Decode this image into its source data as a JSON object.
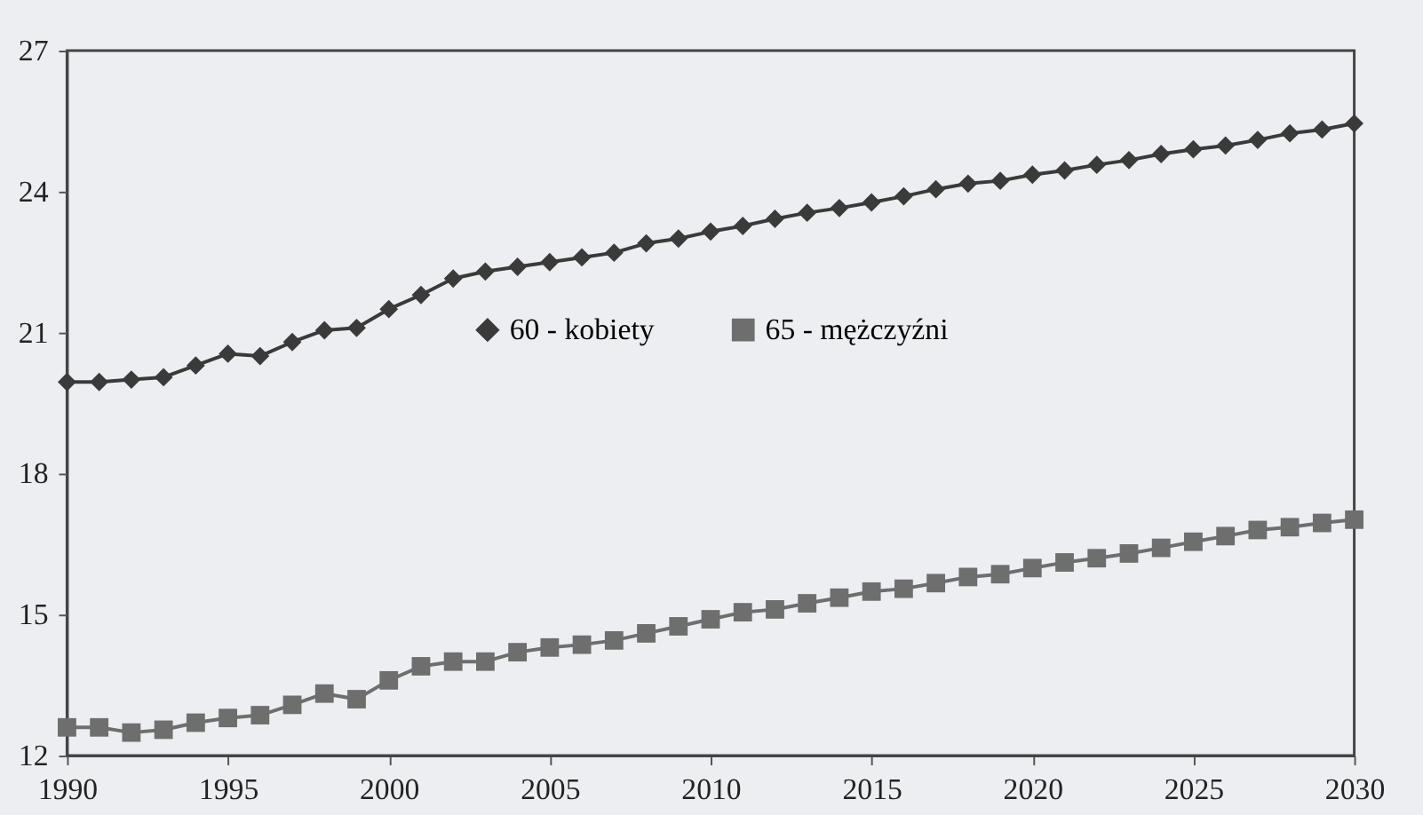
{
  "chart_data": {
    "type": "line",
    "x": [
      1990,
      1991,
      1992,
      1993,
      1994,
      1995,
      1996,
      1997,
      1998,
      1999,
      2000,
      2001,
      2002,
      2003,
      2004,
      2005,
      2006,
      2007,
      2008,
      2009,
      2010,
      2011,
      2012,
      2013,
      2014,
      2015,
      2016,
      2017,
      2018,
      2019,
      2020,
      2021,
      2022,
      2023,
      2024,
      2025,
      2026,
      2027,
      2028,
      2029,
      2030
    ],
    "series": [
      {
        "name": "60 - kobiety",
        "color": "#3a3a3a",
        "marker": "diamond",
        "values": [
          19.95,
          19.95,
          20.0,
          20.05,
          20.3,
          20.55,
          20.5,
          20.8,
          21.05,
          21.1,
          21.5,
          21.8,
          22.15,
          22.3,
          22.4,
          22.5,
          22.6,
          22.7,
          22.9,
          23.0,
          23.15,
          23.27,
          23.42,
          23.55,
          23.65,
          23.77,
          23.9,
          24.05,
          24.17,
          24.23,
          24.36,
          24.45,
          24.57,
          24.67,
          24.8,
          24.9,
          24.98,
          25.1,
          25.24,
          25.32,
          25.45
        ]
      },
      {
        "name": "65 - mężczyźni",
        "color": "#6e6e6e",
        "marker": "square",
        "values": [
          12.6,
          12.6,
          12.49,
          12.55,
          12.7,
          12.8,
          12.86,
          13.08,
          13.32,
          13.2,
          13.6,
          13.9,
          14.0,
          14.0,
          14.2,
          14.3,
          14.36,
          14.45,
          14.6,
          14.75,
          14.9,
          15.05,
          15.11,
          15.24,
          15.36,
          15.49,
          15.55,
          15.67,
          15.8,
          15.86,
          15.99,
          16.11,
          16.2,
          16.3,
          16.42,
          16.55,
          16.67,
          16.8,
          16.86,
          16.95,
          17.02
        ]
      }
    ],
    "xlim": [
      1990,
      2030
    ],
    "xticks": [
      1990,
      1995,
      2000,
      2005,
      2010,
      2015,
      2020,
      2025,
      2030
    ],
    "ylim": [
      12,
      27
    ],
    "yticks": [
      12,
      15,
      18,
      21,
      24,
      27
    ],
    "grid": false,
    "legend": "right",
    "line_style": "solid"
  }
}
